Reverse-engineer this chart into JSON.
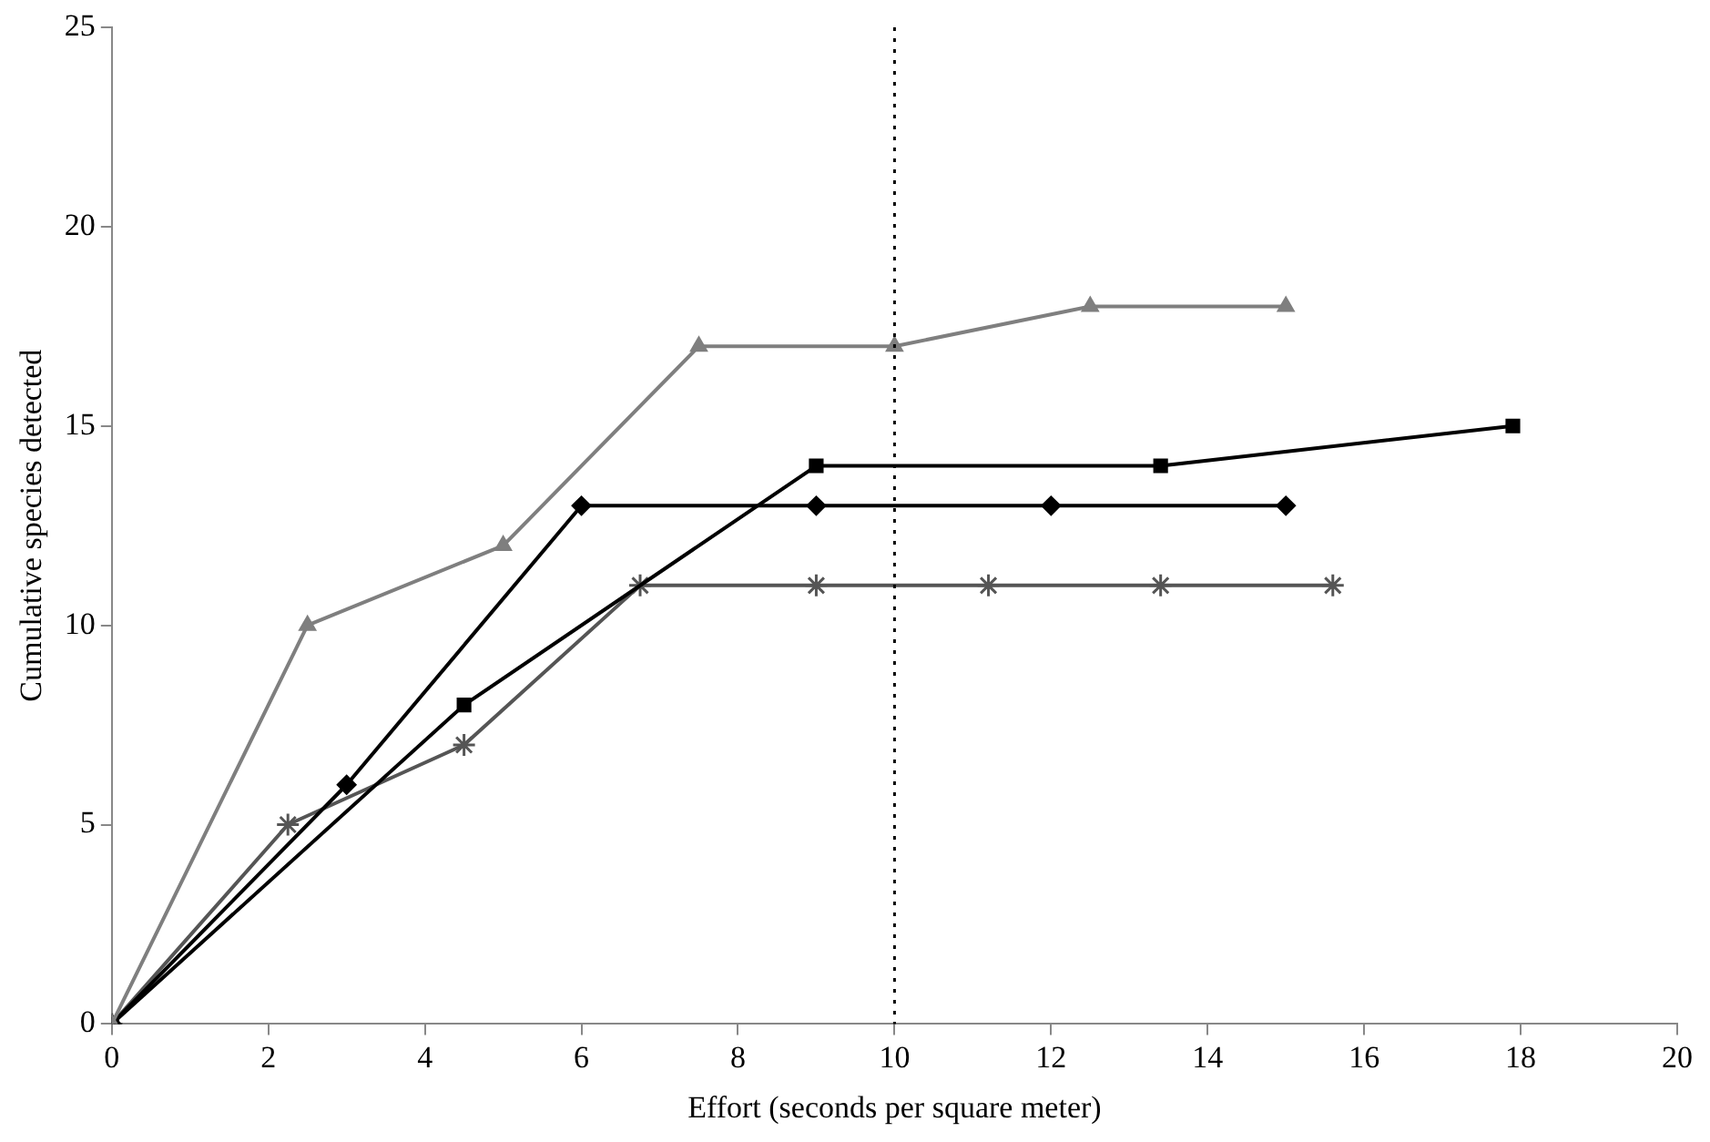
{
  "chart_data": {
    "type": "line",
    "xlabel": "Effort (seconds per square meter)",
    "ylabel": "Cumulative species detected",
    "xlim": [
      0,
      20
    ],
    "xticks": [
      0,
      2,
      4,
      6,
      8,
      10,
      12,
      14,
      16,
      18,
      20
    ],
    "ylim": [
      0,
      25
    ],
    "yticks": [
      0,
      5,
      10,
      15,
      20,
      25
    ],
    "grid": false,
    "legend": false,
    "series": [
      {
        "color": "#7f7f7f",
        "marker": "triangle",
        "x": [
          0,
          2.5,
          5,
          7.5,
          10,
          12.5,
          15
        ],
        "values": [
          0,
          10,
          12,
          17,
          17,
          18,
          18
        ]
      },
      {
        "color": "#000000",
        "marker": "square",
        "x": [
          0,
          4.5,
          9,
          13.4,
          17.9
        ],
        "values": [
          0,
          8,
          14,
          14,
          15
        ]
      },
      {
        "color": "#000000",
        "marker": "diamond",
        "x": [
          0,
          3,
          6,
          9,
          12,
          15
        ],
        "values": [
          0,
          6,
          13,
          13,
          13,
          13
        ]
      },
      {
        "color": "#555555",
        "marker": "cross",
        "x": [
          0,
          2.25,
          4.5,
          6.75,
          9,
          11.2,
          13.4,
          15.6
        ],
        "values": [
          0,
          5,
          7,
          11,
          11,
          11,
          11,
          11
        ]
      }
    ],
    "ref_lines": [
      {
        "axis": "x",
        "value": 10,
        "line_style": "dotted",
        "color": "#000000"
      }
    ]
  }
}
